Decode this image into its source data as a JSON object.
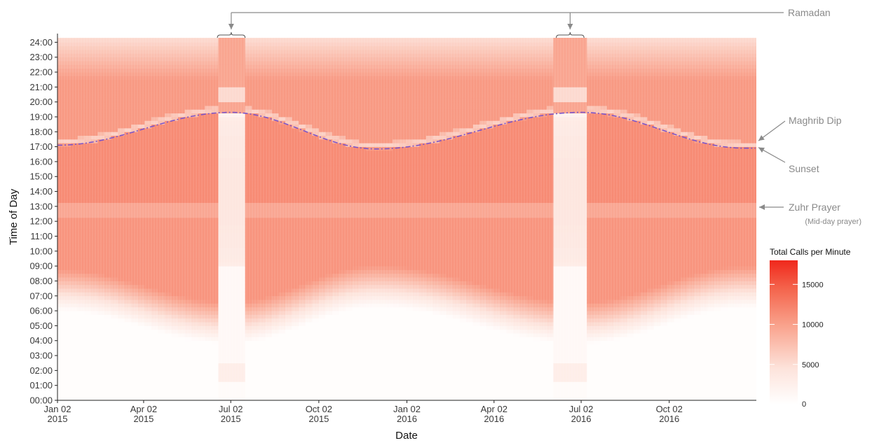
{
  "chart_data": {
    "type": "heatmap",
    "xlabel": "Date",
    "ylabel": "Time of Day",
    "x_range": [
      "2015-01-02",
      "2017-01-01"
    ],
    "y_range_hours": [
      0,
      24.3
    ],
    "x_ticks": [
      {
        "date": "2015-01-02",
        "line1": "Jan 02",
        "line2": "2015"
      },
      {
        "date": "2015-04-02",
        "line1": "Apr 02",
        "line2": "2015"
      },
      {
        "date": "2015-07-02",
        "line1": "Jul 02",
        "line2": "2015"
      },
      {
        "date": "2015-10-02",
        "line1": "Oct 02",
        "line2": "2015"
      },
      {
        "date": "2016-01-02",
        "line1": "Jan 02",
        "line2": "2016"
      },
      {
        "date": "2016-04-02",
        "line1": "Apr 02",
        "line2": "2016"
      },
      {
        "date": "2016-07-02",
        "line1": "Jul 02",
        "line2": "2016"
      },
      {
        "date": "2016-10-02",
        "line1": "Oct 02",
        "line2": "2016"
      }
    ],
    "y_ticks": [
      "00:00",
      "01:00",
      "02:00",
      "03:00",
      "04:00",
      "05:00",
      "06:00",
      "07:00",
      "08:00",
      "09:00",
      "10:00",
      "11:00",
      "12:00",
      "13:00",
      "14:00",
      "15:00",
      "16:00",
      "17:00",
      "18:00",
      "19:00",
      "20:00",
      "21:00",
      "22:00",
      "23:00",
      "24:00"
    ],
    "color_scale": {
      "title": "Total Calls per Minute",
      "min": 0,
      "max": 18000,
      "ticks": [
        0,
        5000,
        10000,
        15000
      ],
      "low_color": "#ffffff",
      "high_color": "#f0281c"
    },
    "ramadan_periods": [
      {
        "start": "2015-06-18",
        "end": "2015-07-17"
      },
      {
        "start": "2016-06-06",
        "end": "2016-07-05"
      }
    ],
    "sunset_line": {
      "color": "#7b55c9",
      "style": "dashed",
      "points": [
        {
          "date": "2015-01-02",
          "time": 17.1
        },
        {
          "date": "2015-07-02",
          "time": 19.3
        },
        {
          "date": "2015-12-01",
          "time": 16.85
        },
        {
          "date": "2016-07-02",
          "time": 19.3
        },
        {
          "date": "2016-12-20",
          "time": 16.9
        }
      ]
    },
    "annotations": [
      {
        "label": "Ramadan",
        "target": "ramadan_periods"
      },
      {
        "label": "Maghrib Dip",
        "target_time": 17.4
      },
      {
        "label": "Sunset",
        "target_time": 16.95
      },
      {
        "label": "Zuhr Prayer",
        "sublabel": "(Mid-day prayer)",
        "target_time": 12.75
      }
    ]
  }
}
